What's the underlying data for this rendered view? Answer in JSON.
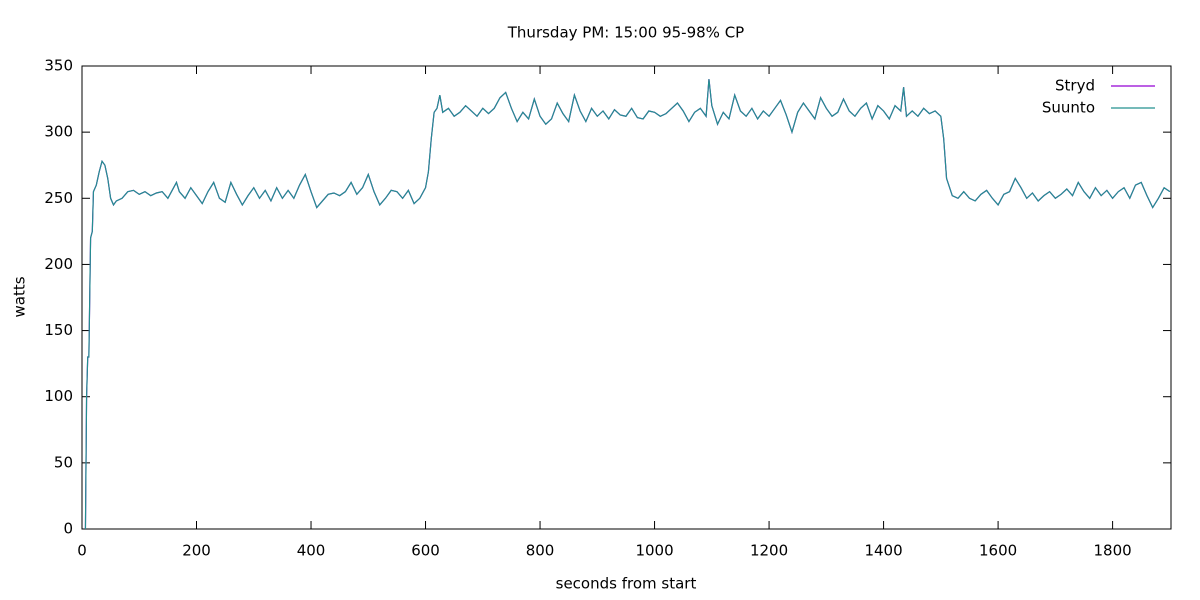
{
  "chart_data": {
    "type": "line",
    "title": "Thursday PM: 15:00 95-98% CP",
    "x_label": "seconds from start",
    "y_label": "watts",
    "xlim": [
      0,
      1902
    ],
    "ylim": [
      0,
      350
    ],
    "xticks": [
      0,
      200,
      400,
      600,
      800,
      1000,
      1200,
      1400,
      1600,
      1800
    ],
    "yticks": [
      0,
      50,
      100,
      150,
      200,
      250,
      300,
      350
    ],
    "legend": "top-right",
    "x": [
      6,
      8,
      10,
      12,
      15,
      18,
      20,
      25,
      30,
      35,
      40,
      45,
      50,
      55,
      60,
      70,
      80,
      90,
      100,
      110,
      120,
      130,
      140,
      150,
      160,
      165,
      170,
      180,
      190,
      200,
      210,
      220,
      230,
      240,
      250,
      260,
      270,
      280,
      290,
      300,
      310,
      320,
      330,
      340,
      350,
      360,
      370,
      380,
      390,
      400,
      410,
      420,
      430,
      440,
      450,
      460,
      470,
      480,
      490,
      500,
      510,
      520,
      530,
      540,
      550,
      560,
      570,
      580,
      590,
      600,
      605,
      610,
      615,
      620,
      625,
      630,
      640,
      650,
      660,
      670,
      680,
      690,
      700,
      710,
      720,
      730,
      740,
      750,
      760,
      770,
      780,
      790,
      800,
      810,
      820,
      830,
      840,
      850,
      860,
      870,
      880,
      890,
      900,
      910,
      920,
      930,
      940,
      950,
      960,
      970,
      980,
      990,
      1000,
      1010,
      1020,
      1030,
      1040,
      1050,
      1060,
      1070,
      1080,
      1090,
      1095,
      1100,
      1110,
      1120,
      1130,
      1140,
      1150,
      1160,
      1170,
      1180,
      1190,
      1200,
      1210,
      1220,
      1230,
      1240,
      1250,
      1260,
      1270,
      1280,
      1290,
      1300,
      1310,
      1320,
      1330,
      1340,
      1350,
      1360,
      1370,
      1380,
      1390,
      1400,
      1410,
      1420,
      1430,
      1435,
      1440,
      1450,
      1460,
      1470,
      1480,
      1490,
      1500,
      1505,
      1510,
      1520,
      1530,
      1540,
      1550,
      1560,
      1570,
      1580,
      1590,
      1600,
      1610,
      1620,
      1630,
      1640,
      1650,
      1660,
      1670,
      1680,
      1690,
      1700,
      1710,
      1720,
      1730,
      1740,
      1750,
      1760,
      1770,
      1780,
      1790,
      1800,
      1810,
      1820,
      1830,
      1840,
      1850,
      1860,
      1870,
      1880,
      1890,
      1900
    ],
    "series": [
      {
        "name": "Stryd",
        "color": "#9400d3",
        "values": [
          0,
          100,
          130,
          130,
          220,
          225,
          255,
          260,
          270,
          278,
          275,
          265,
          250,
          245,
          248,
          250,
          255,
          256,
          253,
          255,
          252,
          254,
          255,
          250,
          258,
          262,
          255,
          250,
          258,
          252,
          246,
          255,
          262,
          250,
          247,
          262,
          253,
          245,
          252,
          258,
          250,
          256,
          248,
          258,
          250,
          256,
          250,
          260,
          268,
          255,
          243,
          248,
          253,
          254,
          252,
          255,
          262,
          253,
          258,
          268,
          255,
          245,
          250,
          256,
          255,
          250,
          256,
          246,
          250,
          258,
          270,
          295,
          315,
          318,
          328,
          315,
          318,
          312,
          315,
          320,
          316,
          312,
          318,
          314,
          318,
          326,
          330,
          318,
          308,
          315,
          310,
          325,
          312,
          306,
          310,
          322,
          314,
          308,
          328,
          316,
          308,
          318,
          312,
          316,
          310,
          317,
          313,
          312,
          318,
          311,
          310,
          316,
          315,
          312,
          314,
          318,
          322,
          316,
          308,
          315,
          318,
          312,
          340,
          320,
          306,
          315,
          310,
          328,
          316,
          312,
          318,
          310,
          316,
          312,
          318,
          324,
          313,
          300,
          315,
          322,
          316,
          310,
          326,
          318,
          312,
          315,
          325,
          316,
          312,
          318,
          322,
          310,
          320,
          316,
          310,
          320,
          316,
          334,
          312,
          316,
          312,
          318,
          314,
          316,
          312,
          295,
          265,
          252,
          250,
          255,
          250,
          248,
          253,
          256,
          250,
          245,
          253,
          255,
          265,
          258,
          250,
          254,
          248,
          252,
          255,
          250,
          253,
          257,
          252,
          262,
          255,
          250,
          258,
          252,
          256,
          250,
          255,
          258,
          250,
          260,
          262,
          252,
          243,
          250,
          258,
          255
        ]
      },
      {
        "name": "Suunto",
        "color": "#23908f",
        "values": [
          0,
          100,
          130,
          130,
          220,
          225,
          255,
          260,
          270,
          278,
          275,
          265,
          250,
          245,
          248,
          250,
          255,
          256,
          253,
          255,
          252,
          254,
          255,
          250,
          258,
          262,
          255,
          250,
          258,
          252,
          246,
          255,
          262,
          250,
          247,
          262,
          253,
          245,
          252,
          258,
          250,
          256,
          248,
          258,
          250,
          256,
          250,
          260,
          268,
          255,
          243,
          248,
          253,
          254,
          252,
          255,
          262,
          253,
          258,
          268,
          255,
          245,
          250,
          256,
          255,
          250,
          256,
          246,
          250,
          258,
          270,
          295,
          315,
          318,
          328,
          315,
          318,
          312,
          315,
          320,
          316,
          312,
          318,
          314,
          318,
          326,
          330,
          318,
          308,
          315,
          310,
          325,
          312,
          306,
          310,
          322,
          314,
          308,
          328,
          316,
          308,
          318,
          312,
          316,
          310,
          317,
          313,
          312,
          318,
          311,
          310,
          316,
          315,
          312,
          314,
          318,
          322,
          316,
          308,
          315,
          318,
          312,
          340,
          320,
          306,
          315,
          310,
          328,
          316,
          312,
          318,
          310,
          316,
          312,
          318,
          324,
          313,
          300,
          315,
          322,
          316,
          310,
          326,
          318,
          312,
          315,
          325,
          316,
          312,
          318,
          322,
          310,
          320,
          316,
          310,
          320,
          316,
          334,
          312,
          316,
          312,
          318,
          314,
          316,
          312,
          295,
          265,
          252,
          250,
          255,
          250,
          248,
          253,
          256,
          250,
          245,
          253,
          255,
          265,
          258,
          250,
          254,
          248,
          252,
          255,
          250,
          253,
          257,
          252,
          262,
          255,
          250,
          258,
          252,
          256,
          250,
          255,
          258,
          250,
          260,
          262,
          252,
          243,
          250,
          258,
          255
        ]
      }
    ]
  }
}
